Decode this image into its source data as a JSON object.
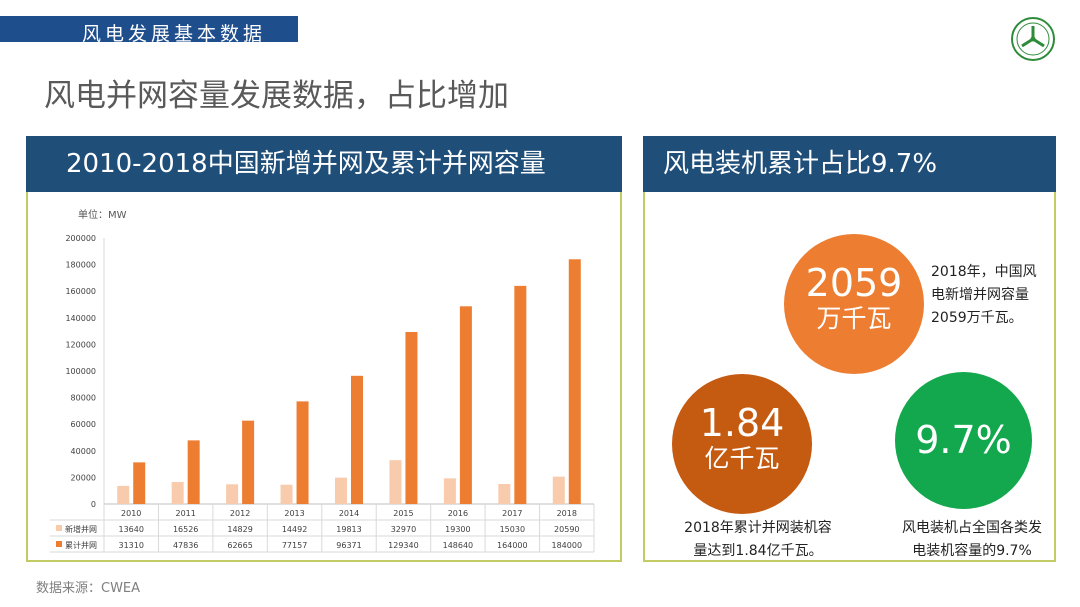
{
  "banner": {
    "title": "风电发展基本数据"
  },
  "headline": "风电并网容量发展数据，占比增加",
  "left_panel": {
    "title": "2010-2018中国新增并网及累计并网容量"
  },
  "right_panel": {
    "title": "风电装机累计占比9.7%",
    "circle1": {
      "value": "2059",
      "unit": "万千瓦"
    },
    "circle1_note": "2018年，中国风电新增并网容量2059万千瓦。",
    "circle2": {
      "value": "1.84",
      "unit": "亿千瓦"
    },
    "circle2_note": "2018年累计并网装机容量达到1.84亿千瓦。",
    "circle3": {
      "value": "9.7%"
    },
    "circle3_note": "风电装机占全国各类发电装机容量的9.7%"
  },
  "source": "数据来源：CWEA",
  "colors": {
    "navy": "#1f4e79",
    "banner": "#1f4e8c",
    "new": "#f8cbad",
    "cumulative": "#ed7d31",
    "frame": "#c3cc62"
  },
  "chart_data": {
    "type": "bar",
    "unit_label": "单位：MW",
    "categories": [
      "2010",
      "2011",
      "2012",
      "2013",
      "2014",
      "2015",
      "2016",
      "2017",
      "2018"
    ],
    "series": [
      {
        "name": "新增并网",
        "values": [
          13640,
          16526,
          14829,
          14492,
          19813,
          32970,
          19300,
          15030,
          20590
        ]
      },
      {
        "name": "累计并网",
        "values": [
          31310,
          47836,
          62665,
          77157,
          96371,
          129340,
          148640,
          164000,
          184000
        ]
      }
    ],
    "yticks": [
      0,
      20000,
      40000,
      60000,
      80000,
      100000,
      120000,
      140000,
      160000,
      180000,
      200000
    ],
    "ylim": [
      0,
      200000
    ],
    "legend": "data-table"
  }
}
